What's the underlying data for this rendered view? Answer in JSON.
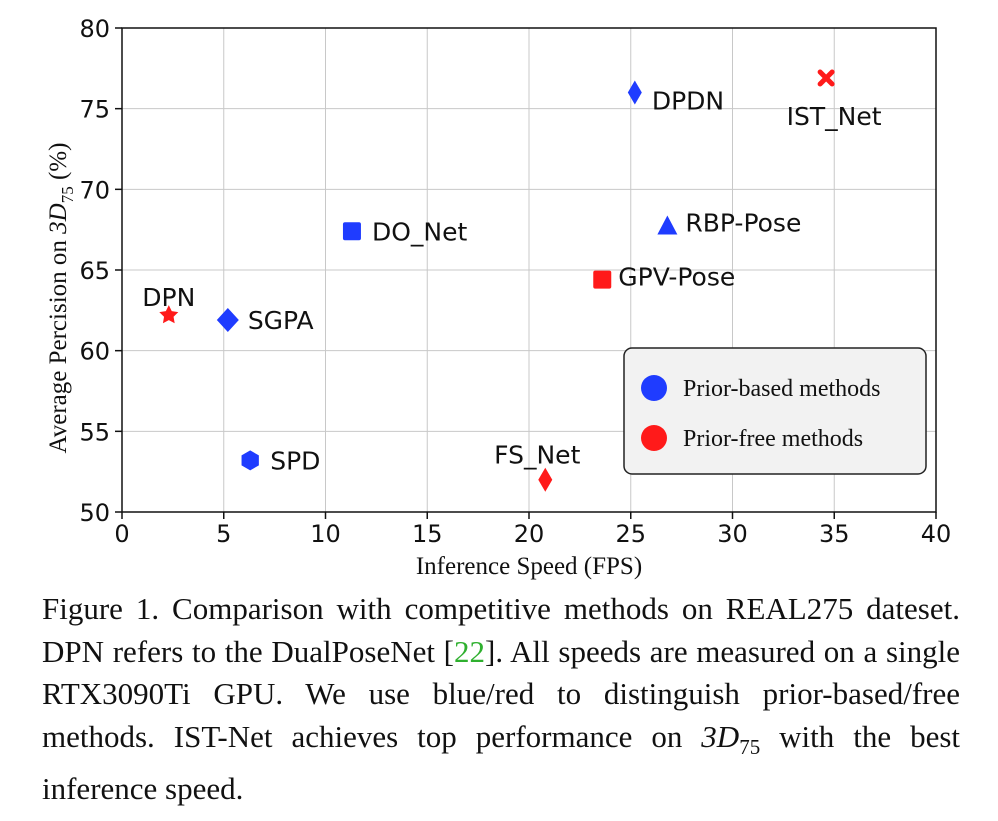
{
  "chart_data": {
    "type": "scatter",
    "xlabel": "Inference Speed (FPS)",
    "ylabel": "Average Percision on 3D75 (%)",
    "ylabel_parts": {
      "prefix": "Average Percision on ",
      "var": "3D",
      "sub": "75",
      "suffix": " (%)"
    },
    "xlim": [
      0,
      40
    ],
    "ylim": [
      50,
      80
    ],
    "xticks": [
      "0",
      "5",
      "10",
      "15",
      "20",
      "25",
      "30",
      "35",
      "40"
    ],
    "yticks": [
      "50",
      "55",
      "60",
      "65",
      "70",
      "75",
      "80"
    ],
    "grid": true,
    "legend_position": "lower-right",
    "legend": [
      {
        "name": "Prior-based methods",
        "color": "#1f3cff"
      },
      {
        "name": "Prior-free methods",
        "color": "#ff1a1a"
      }
    ],
    "points": [
      {
        "label": "DPDN",
        "x": 25.2,
        "y": 76.0,
        "group": "Prior-based methods",
        "marker": "thin-diamond"
      },
      {
        "label": "IST_Net",
        "x": 34.6,
        "y": 76.9,
        "group": "Prior-free methods",
        "marker": "x"
      },
      {
        "label": "DO_Net",
        "x": 11.3,
        "y": 67.4,
        "group": "Prior-based methods",
        "marker": "square"
      },
      {
        "label": "RBP-Pose",
        "x": 26.8,
        "y": 67.7,
        "group": "Prior-based methods",
        "marker": "triangle"
      },
      {
        "label": "GPV-Pose",
        "x": 23.6,
        "y": 64.4,
        "group": "Prior-free methods",
        "marker": "square"
      },
      {
        "label": "DPN",
        "x": 2.3,
        "y": 62.2,
        "group": "Prior-free methods",
        "marker": "star"
      },
      {
        "label": "SGPA",
        "x": 5.2,
        "y": 61.9,
        "group": "Prior-based methods",
        "marker": "diamond"
      },
      {
        "label": "SPD",
        "x": 6.3,
        "y": 53.2,
        "group": "Prior-based methods",
        "marker": "hexagon"
      },
      {
        "label": "FS_Net",
        "x": 20.8,
        "y": 52.0,
        "group": "Prior-free methods",
        "marker": "thin-diamond"
      }
    ]
  },
  "caption": {
    "part1": "Figure 1. Comparison with competitive methods on REAL275 dateset. DPN refers to the DualPoseNet [",
    "cite": "22",
    "part2": "]. All speeds are measured on a single RTX3090Ti GPU. We use blue/red to distinguish prior-based/free methods. IST-Net achieves top performance on ",
    "math_var": "3D",
    "math_sub": "75",
    "part3": " with the best inference speed."
  }
}
